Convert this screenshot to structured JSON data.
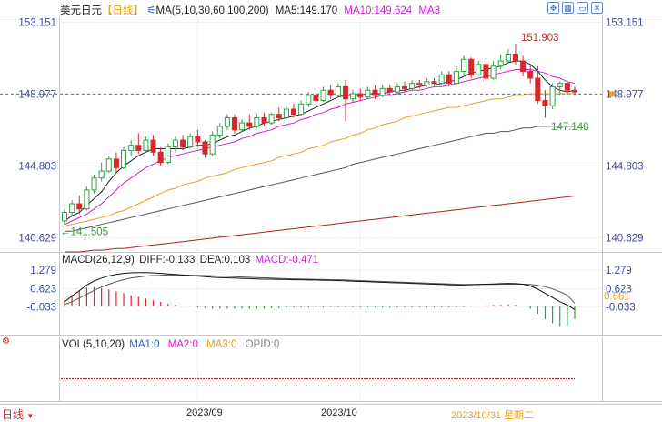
{
  "header": {
    "symbol": "美元日元",
    "period": "【日线】",
    "ma_label": "MA(5,10,30,60,100,200)",
    "ma5": "MA5:149.170",
    "ma10": "MA10:149.624",
    "ma3": "MA3"
  },
  "toolbar": {
    "icons": [
      "pin-icon",
      "grid-icon",
      "window-icon",
      "close-icon"
    ]
  },
  "price_axis": {
    "ticks": [
      "153.151",
      "148.977",
      "144.803",
      "140.629"
    ],
    "current": "148.977",
    "high_label": "151.903",
    "low_label": "141.505",
    "ma_label": "147.148"
  },
  "macd": {
    "title": "MACD(26,12,9)",
    "diff": "DIFF:-0.133",
    "dea": "DEA:0.103",
    "macd": "MACD:-0.471",
    "ticks": [
      "1.279",
      "0.623",
      "-0.033"
    ],
    "right_value": "0.661"
  },
  "vol": {
    "title": "VOL(5,10,20)",
    "ma1": "MA1:0",
    "ma2": "MA2:0",
    "ma3": "MA3:0",
    "opid": "OPID:0"
  },
  "bottom": {
    "period_tab": "日线",
    "dates": [
      "2023/09",
      "2023/10"
    ],
    "cursor_date": "2023/10/31 星期二"
  },
  "colors": {
    "up": "#23a83a",
    "down": "#d8282c",
    "ma5": "#222222",
    "ma10": "#d020d8",
    "ma30": "#e8a020",
    "ma60": "#555555",
    "ma100": "#b02020",
    "axis": "#3e4aa8"
  },
  "chart_data": {
    "type": "candlestick",
    "ylim": [
      139.8,
      153.6
    ],
    "candles_ohlc": [
      [
        141.6,
        142.3,
        141.4,
        142.1
      ],
      [
        142.1,
        142.8,
        141.9,
        142.6
      ],
      [
        142.6,
        143.1,
        142.0,
        142.3
      ],
      [
        142.3,
        143.6,
        142.2,
        143.4
      ],
      [
        143.4,
        144.3,
        143.2,
        144.1
      ],
      [
        144.1,
        145.0,
        143.9,
        144.5
      ],
      [
        144.5,
        145.4,
        144.4,
        145.2
      ],
      [
        145.2,
        145.6,
        144.4,
        144.7
      ],
      [
        144.7,
        145.9,
        144.6,
        145.7
      ],
      [
        145.7,
        146.3,
        145.4,
        146.0
      ],
      [
        146.0,
        146.7,
        145.5,
        145.7
      ],
      [
        145.7,
        146.5,
        145.6,
        146.3
      ],
      [
        146.3,
        146.6,
        145.4,
        145.6
      ],
      [
        145.6,
        145.9,
        144.8,
        145.0
      ],
      [
        145.0,
        146.1,
        144.9,
        145.9
      ],
      [
        145.9,
        146.5,
        145.6,
        146.3
      ],
      [
        146.3,
        146.6,
        145.7,
        145.9
      ],
      [
        145.9,
        146.7,
        145.8,
        146.5
      ],
      [
        146.5,
        146.9,
        145.9,
        146.2
      ],
      [
        146.2,
        146.3,
        145.3,
        145.5
      ],
      [
        145.5,
        146.8,
        145.4,
        146.6
      ],
      [
        146.6,
        147.3,
        146.4,
        147.1
      ],
      [
        147.1,
        147.8,
        146.9,
        147.6
      ],
      [
        147.6,
        147.8,
        146.7,
        146.9
      ],
      [
        146.9,
        147.5,
        146.8,
        147.3
      ],
      [
        147.3,
        147.8,
        146.9,
        147.1
      ],
      [
        147.1,
        147.8,
        147.0,
        147.6
      ],
      [
        147.6,
        147.9,
        147.1,
        147.3
      ],
      [
        147.3,
        147.9,
        147.2,
        147.8
      ],
      [
        147.8,
        148.2,
        147.4,
        147.6
      ],
      [
        147.6,
        148.3,
        147.5,
        148.1
      ],
      [
        148.1,
        148.4,
        147.6,
        147.8
      ],
      [
        147.8,
        148.6,
        147.7,
        148.4
      ],
      [
        148.4,
        149.1,
        148.2,
        148.9
      ],
      [
        148.9,
        149.3,
        148.4,
        148.6
      ],
      [
        148.6,
        149.4,
        148.5,
        149.2
      ],
      [
        149.2,
        149.5,
        148.7,
        148.9
      ],
      [
        148.9,
        149.6,
        148.8,
        149.4
      ],
      [
        149.4,
        149.8,
        147.4,
        148.7
      ],
      [
        148.7,
        149.2,
        148.5,
        149.0
      ],
      [
        149.0,
        149.3,
        148.6,
        148.8
      ],
      [
        148.8,
        149.4,
        148.7,
        149.2
      ],
      [
        149.2,
        149.5,
        148.7,
        148.9
      ],
      [
        148.9,
        149.5,
        148.8,
        149.3
      ],
      [
        149.3,
        149.5,
        148.9,
        149.1
      ],
      [
        149.1,
        149.6,
        149.0,
        149.4
      ],
      [
        149.4,
        149.7,
        149.1,
        149.3
      ],
      [
        149.3,
        149.8,
        149.2,
        149.6
      ],
      [
        149.6,
        149.8,
        149.3,
        149.5
      ],
      [
        149.5,
        149.9,
        149.4,
        149.7
      ],
      [
        149.7,
        149.9,
        149.4,
        149.6
      ],
      [
        149.6,
        150.3,
        149.5,
        150.1
      ],
      [
        150.1,
        150.3,
        149.4,
        149.6
      ],
      [
        149.6,
        150.6,
        149.5,
        150.3
      ],
      [
        150.3,
        151.2,
        150.1,
        151.0
      ],
      [
        151.0,
        151.1,
        149.9,
        150.1
      ],
      [
        150.1,
        150.9,
        150.0,
        150.7
      ],
      [
        150.7,
        150.9,
        149.7,
        149.9
      ],
      [
        149.9,
        150.9,
        149.8,
        150.6
      ],
      [
        150.6,
        151.3,
        150.4,
        150.9
      ],
      [
        150.9,
        151.6,
        150.8,
        151.3
      ],
      [
        151.3,
        151.9,
        150.7,
        150.9
      ],
      [
        150.9,
        151.2,
        150.0,
        150.3
      ],
      [
        150.3,
        150.7,
        149.6,
        149.9
      ],
      [
        149.9,
        150.6,
        148.4,
        148.6
      ],
      [
        148.6,
        149.2,
        147.6,
        148.3
      ],
      [
        148.3,
        149.6,
        148.1,
        149.4
      ],
      [
        149.4,
        149.7,
        148.9,
        149.6
      ],
      [
        149.6,
        149.7,
        149.0,
        149.2
      ],
      [
        149.2,
        149.4,
        148.9,
        149.1
      ]
    ],
    "ma5": [
      141.6,
      141.9,
      142.1,
      142.5,
      142.9,
      143.3,
      143.9,
      144.4,
      144.8,
      145.1,
      145.4,
      145.6,
      145.8,
      145.8,
      145.8,
      145.8,
      145.8,
      145.9,
      146.0,
      146.0,
      146.1,
      146.3,
      146.5,
      146.6,
      146.8,
      147.0,
      147.1,
      147.3,
      147.4,
      147.5,
      147.6,
      147.7,
      147.8,
      148.0,
      148.2,
      148.4,
      148.6,
      148.8,
      148.9,
      148.9,
      148.9,
      149.0,
      149.0,
      149.0,
      149.1,
      149.2,
      149.2,
      149.3,
      149.4,
      149.5,
      149.5,
      149.6,
      149.7,
      149.8,
      150.0,
      150.2,
      150.3,
      150.4,
      150.5,
      150.6,
      150.8,
      150.9,
      150.9,
      150.7,
      150.3,
      149.8,
      149.4,
      149.2,
      149.1,
      149.2
    ],
    "ma10": [
      141.4,
      141.6,
      141.8,
      142.0,
      142.3,
      142.6,
      143.0,
      143.4,
      143.8,
      144.1,
      144.4,
      144.7,
      144.9,
      145.1,
      145.3,
      145.4,
      145.5,
      145.6,
      145.7,
      145.8,
      145.9,
      146.0,
      146.1,
      146.2,
      146.4,
      146.5,
      146.7,
      146.8,
      146.9,
      147.1,
      147.2,
      147.3,
      147.5,
      147.6,
      147.8,
      147.9,
      148.1,
      148.2,
      148.4,
      148.5,
      148.6,
      148.7,
      148.8,
      148.9,
      148.9,
      149.0,
      149.1,
      149.2,
      149.2,
      149.3,
      149.4,
      149.4,
      149.5,
      149.6,
      149.7,
      149.8,
      149.9,
      150.0,
      150.1,
      150.2,
      150.3,
      150.4,
      150.4,
      150.4,
      150.3,
      150.2,
      150.0,
      149.9,
      149.7,
      149.6
    ],
    "ma30": [
      141.3,
      141.4,
      141.5,
      141.6,
      141.7,
      141.8,
      141.9,
      142.1,
      142.2,
      142.4,
      142.6,
      142.8,
      143.0,
      143.2,
      143.4,
      143.5,
      143.7,
      143.8,
      143.9,
      144.1,
      144.2,
      144.3,
      144.4,
      144.6,
      144.7,
      144.8,
      144.9,
      145.0,
      145.1,
      145.3,
      145.4,
      145.5,
      145.6,
      145.8,
      145.9,
      146.0,
      146.2,
      146.3,
      146.4,
      146.6,
      146.7,
      146.9,
      147.0,
      147.2,
      147.3,
      147.4,
      147.6,
      147.7,
      147.8,
      147.9,
      148.0,
      148.1,
      148.2,
      148.2,
      148.3,
      148.4,
      148.5,
      148.6,
      148.7,
      148.7,
      148.8,
      148.9,
      148.9,
      149.0,
      149.0,
      149.0,
      149.0,
      149.0,
      149.0,
      149.0
    ],
    "ma60": [
      141.0,
      141.0,
      141.1,
      141.2,
      141.3,
      141.4,
      141.5,
      141.6,
      141.7,
      141.8,
      141.9,
      142.0,
      142.1,
      142.2,
      142.3,
      142.4,
      142.5,
      142.6,
      142.7,
      142.8,
      142.9,
      143.0,
      143.1,
      143.2,
      143.3,
      143.4,
      143.5,
      143.6,
      143.7,
      143.8,
      143.9,
      144.0,
      144.1,
      144.2,
      144.3,
      144.4,
      144.5,
      144.6,
      144.7,
      144.9,
      145.0,
      145.1,
      145.2,
      145.3,
      145.4,
      145.5,
      145.6,
      145.7,
      145.8,
      145.9,
      146.0,
      146.1,
      146.2,
      146.3,
      146.4,
      146.5,
      146.6,
      146.7,
      146.7,
      146.8,
      146.8,
      146.9,
      147.0,
      147.0,
      147.1,
      147.1,
      147.1,
      147.1,
      147.1,
      147.1
    ],
    "ma100": [
      139.8,
      139.8,
      139.8,
      139.85,
      139.9,
      139.9,
      139.95,
      140.0,
      140.0,
      140.05,
      140.1,
      140.15,
      140.2,
      140.25,
      140.3,
      140.35,
      140.4,
      140.45,
      140.5,
      140.55,
      140.6,
      140.65,
      140.7,
      140.75,
      140.8,
      140.85,
      140.9,
      140.95,
      141.0,
      141.05,
      141.1,
      141.15,
      141.2,
      141.25,
      141.3,
      141.35,
      141.4,
      141.45,
      141.5,
      141.55,
      141.6,
      141.65,
      141.7,
      141.75,
      141.8,
      141.85,
      141.9,
      141.95,
      142.0,
      142.05,
      142.1,
      142.15,
      142.2,
      142.25,
      142.3,
      142.35,
      142.4,
      142.45,
      142.5,
      142.55,
      142.6,
      142.65,
      142.7,
      142.75,
      142.8,
      142.85,
      142.9,
      142.95,
      143.0,
      143.05
    ],
    "macd_diff": [
      0.15,
      0.35,
      0.55,
      0.75,
      0.9,
      1.0,
      1.08,
      1.13,
      1.17,
      1.19,
      1.2,
      1.2,
      1.19,
      1.17,
      1.15,
      1.13,
      1.11,
      1.09,
      1.07,
      1.05,
      1.03,
      1.02,
      1.01,
      1.0,
      0.99,
      0.98,
      0.97,
      0.96,
      0.96,
      0.95,
      0.95,
      0.94,
      0.94,
      0.93,
      0.93,
      0.92,
      0.92,
      0.91,
      0.9,
      0.89,
      0.88,
      0.87,
      0.86,
      0.85,
      0.84,
      0.83,
      0.82,
      0.81,
      0.8,
      0.79,
      0.78,
      0.77,
      0.76,
      0.75,
      0.75,
      0.76,
      0.77,
      0.78,
      0.79,
      0.8,
      0.81,
      0.8,
      0.78,
      0.72,
      0.6,
      0.45,
      0.3,
      0.15,
      0.03,
      -0.13
    ],
    "macd_dea": [
      0.05,
      0.15,
      0.28,
      0.42,
      0.56,
      0.68,
      0.78,
      0.87,
      0.94,
      1.0,
      1.04,
      1.07,
      1.09,
      1.1,
      1.11,
      1.11,
      1.11,
      1.1,
      1.1,
      1.09,
      1.08,
      1.07,
      1.06,
      1.05,
      1.04,
      1.03,
      1.02,
      1.01,
      1.0,
      0.99,
      0.98,
      0.97,
      0.97,
      0.96,
      0.95,
      0.95,
      0.94,
      0.94,
      0.93,
      0.92,
      0.91,
      0.9,
      0.89,
      0.88,
      0.87,
      0.86,
      0.85,
      0.84,
      0.83,
      0.82,
      0.81,
      0.8,
      0.79,
      0.78,
      0.77,
      0.77,
      0.77,
      0.77,
      0.77,
      0.78,
      0.78,
      0.78,
      0.78,
      0.77,
      0.74,
      0.69,
      0.61,
      0.51,
      0.39,
      0.1
    ],
    "macd_hist": [
      0.2,
      0.4,
      0.54,
      0.66,
      0.68,
      0.64,
      0.6,
      0.52,
      0.46,
      0.38,
      0.32,
      0.26,
      0.2,
      0.14,
      0.08,
      0.04,
      0.0,
      -0.02,
      -0.06,
      -0.08,
      -0.1,
      -0.1,
      -0.1,
      -0.1,
      -0.1,
      -0.1,
      -0.1,
      -0.1,
      -0.08,
      -0.08,
      -0.06,
      -0.06,
      -0.06,
      -0.06,
      -0.04,
      -0.06,
      -0.04,
      -0.06,
      -0.06,
      -0.06,
      -0.06,
      -0.06,
      -0.06,
      -0.06,
      -0.06,
      -0.06,
      -0.06,
      -0.06,
      -0.06,
      -0.06,
      -0.06,
      -0.06,
      -0.06,
      -0.06,
      -0.04,
      -0.02,
      0.0,
      0.02,
      0.04,
      0.04,
      0.06,
      0.04,
      0.0,
      -0.1,
      -0.28,
      -0.48,
      -0.62,
      -0.72,
      -0.72,
      -0.47
    ]
  }
}
